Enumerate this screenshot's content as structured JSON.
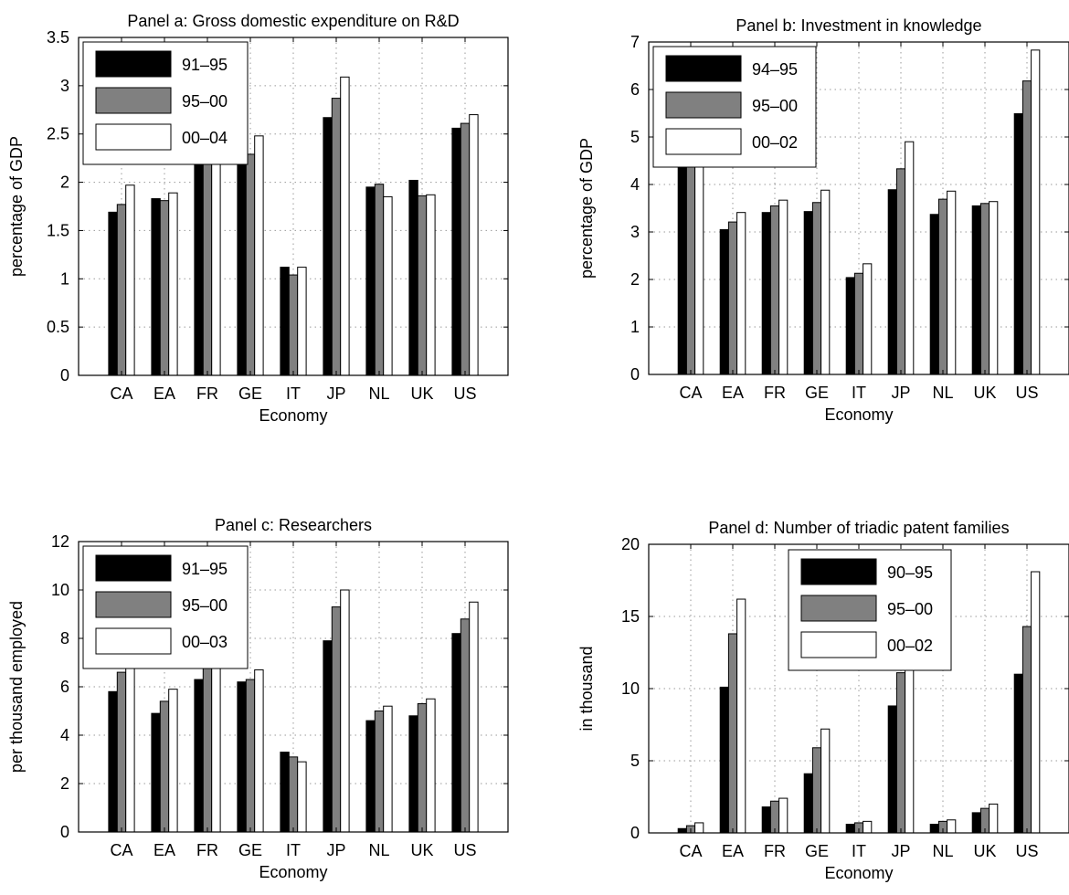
{
  "chart_data": [
    {
      "type": "bar",
      "title": "Panel a: Gross domestic expenditure on R&D",
      "xlabel": "Economy",
      "ylabel": "percentage of GDP",
      "ylim": [
        0,
        3.5
      ],
      "yticks": [
        "0",
        "0.5",
        "1",
        "1.5",
        "2",
        "2.5",
        "3",
        "3.5"
      ],
      "grid": true,
      "legend": "top-left",
      "categories": [
        "CA",
        "EA",
        "FR",
        "GE",
        "IT",
        "JP",
        "NL",
        "UK",
        "US"
      ],
      "series": [
        {
          "name": "91–95",
          "color": "#000000",
          "values": [
            1.69,
            1.83,
            2.33,
            2.3,
            1.12,
            2.67,
            1.95,
            2.02,
            2.56
          ]
        },
        {
          "name": "95–00",
          "color": "#808080",
          "values": [
            1.77,
            1.81,
            2.2,
            2.29,
            1.04,
            2.87,
            1.98,
            1.86,
            2.61
          ]
        },
        {
          "name": "00–04",
          "color": "#ffffff",
          "values": [
            1.97,
            1.89,
            2.19,
            2.48,
            1.12,
            3.09,
            1.85,
            1.87,
            2.7
          ]
        }
      ]
    },
    {
      "type": "bar",
      "title": "Panel b: Investment in knowledge",
      "xlabel": "Economy",
      "ylabel": "percentage of GDP",
      "ylim": [
        0,
        7
      ],
      "yticks": [
        "0",
        "1",
        "2",
        "3",
        "4",
        "5",
        "6",
        "7"
      ],
      "grid": true,
      "legend": "top-left",
      "categories": [
        "CA",
        "EA",
        "FR",
        "GE",
        "IT",
        "JP",
        "NL",
        "UK",
        "US"
      ],
      "series": [
        {
          "name": "94–95",
          "color": "#000000",
          "values": [
            4.48,
            3.05,
            3.41,
            3.43,
            2.04,
            3.89,
            3.37,
            3.55,
            5.49
          ]
        },
        {
          "name": "95–00",
          "color": "#808080",
          "values": [
            4.37,
            3.21,
            3.55,
            3.62,
            2.13,
            4.33,
            3.69,
            3.6,
            6.18
          ]
        },
        {
          "name": "00–02",
          "color": "#ffffff",
          "values": [
            4.81,
            3.41,
            3.67,
            3.88,
            2.33,
            4.9,
            3.86,
            3.64,
            6.83
          ]
        }
      ]
    },
    {
      "type": "bar",
      "title": "Panel c: Researchers",
      "xlabel": "Economy",
      "ylabel": "per thousand employed",
      "ylim": [
        0,
        12
      ],
      "yticks": [
        "0",
        "2",
        "4",
        "6",
        "8",
        "10",
        "12"
      ],
      "grid": true,
      "legend": "top-left",
      "categories": [
        "CA",
        "EA",
        "FR",
        "GE",
        "IT",
        "JP",
        "NL",
        "UK",
        "US"
      ],
      "series": [
        {
          "name": "91–95",
          "color": "#000000",
          "values": [
            5.8,
            4.9,
            6.3,
            6.2,
            3.3,
            7.9,
            4.6,
            4.8,
            8.2
          ]
        },
        {
          "name": "95–00",
          "color": "#808080",
          "values": [
            6.6,
            5.4,
            6.8,
            6.3,
            3.1,
            9.3,
            5.0,
            5.3,
            8.8
          ]
        },
        {
          "name": "00–03",
          "color": "#ffffff",
          "values": [
            7.2,
            5.9,
            7.3,
            6.7,
            2.9,
            10.0,
            5.2,
            5.5,
            9.5
          ]
        }
      ]
    },
    {
      "type": "bar",
      "title": "Panel d: Number of triadic patent families",
      "xlabel": "Economy",
      "ylabel": "in thousand",
      "ylim": [
        0,
        20
      ],
      "yticks": [
        "0",
        "5",
        "10",
        "15",
        "20"
      ],
      "grid": true,
      "legend": "top-center",
      "categories": [
        "CA",
        "EA",
        "FR",
        "GE",
        "IT",
        "JP",
        "NL",
        "UK",
        "US"
      ],
      "series": [
        {
          "name": "90–95",
          "color": "#000000",
          "values": [
            0.3,
            10.1,
            1.8,
            4.1,
            0.6,
            8.8,
            0.6,
            1.4,
            11.0
          ]
        },
        {
          "name": "95–00",
          "color": "#808080",
          "values": [
            0.5,
            13.8,
            2.2,
            5.9,
            0.7,
            11.1,
            0.8,
            1.7,
            14.3
          ]
        },
        {
          "name": "00–02",
          "color": "#ffffff",
          "values": [
            0.7,
            16.2,
            2.4,
            7.2,
            0.8,
            12.8,
            0.9,
            2.0,
            18.1
          ]
        }
      ]
    }
  ]
}
